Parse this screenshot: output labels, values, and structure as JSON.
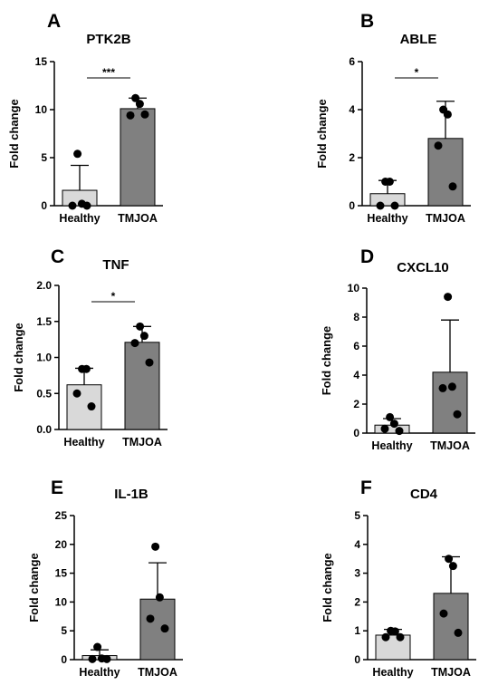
{
  "chart_data": [
    {
      "type": "bar",
      "panel": "A",
      "title": "PTK2B",
      "ylabel": "Fold change",
      "categories": [
        "Healthy",
        "TMJOA"
      ],
      "yticks": [
        "0",
        "5",
        "10",
        "15"
      ],
      "ylim": [
        0,
        15
      ],
      "colors": [
        "#d9d9d9",
        "#808080"
      ],
      "values": [
        1.6,
        10.1
      ],
      "errors": [
        2.6,
        1.1
      ],
      "points": [
        [
          5.4,
          0.2,
          0.0,
          0.0
        ],
        [
          11.2,
          10.6,
          9.4,
          9.5
        ]
      ],
      "significance": "***"
    },
    {
      "type": "bar",
      "panel": "B",
      "title": "ABLE",
      "ylabel": "Fold change",
      "categories": [
        "Healthy",
        "TMJOA"
      ],
      "yticks": [
        "0",
        "2",
        "4",
        "6"
      ],
      "ylim": [
        0,
        6
      ],
      "colors": [
        "#d9d9d9",
        "#808080"
      ],
      "values": [
        0.5,
        2.8
      ],
      "errors": [
        0.55,
        1.55
      ],
      "points": [
        [
          1.0,
          1.0,
          0.0,
          0.0
        ],
        [
          4.0,
          3.8,
          2.5,
          0.8
        ]
      ],
      "significance": "*"
    },
    {
      "type": "bar",
      "panel": "C",
      "title": "TNF",
      "ylabel": "Fold change",
      "categories": [
        "Healthy",
        "TMJOA"
      ],
      "yticks": [
        "0.0",
        "0.5",
        "1.0",
        "1.5",
        "2.0"
      ],
      "ylim": [
        0,
        2
      ],
      "colors": [
        "#d9d9d9",
        "#808080"
      ],
      "values": [
        0.62,
        1.21
      ],
      "errors": [
        0.23,
        0.22
      ],
      "points": [
        [
          0.84,
          0.84,
          0.5,
          0.32
        ],
        [
          1.43,
          1.3,
          1.2,
          0.93
        ]
      ],
      "significance": "*"
    },
    {
      "type": "bar",
      "panel": "D",
      "title": "CXCL10",
      "ylabel": "Fold change",
      "categories": [
        "Healthy",
        "TMJOA"
      ],
      "yticks": [
        "0",
        "2",
        "4",
        "6",
        "8",
        "10"
      ],
      "ylim": [
        0,
        10
      ],
      "colors": [
        "#d9d9d9",
        "#808080"
      ],
      "values": [
        0.55,
        4.2
      ],
      "errors": [
        0.45,
        3.6
      ],
      "points": [
        [
          1.1,
          0.65,
          0.3,
          0.15
        ],
        [
          9.4,
          3.2,
          3.1,
          1.3
        ]
      ],
      "significance": ""
    },
    {
      "type": "bar",
      "panel": "E",
      "title": "IL-1B",
      "ylabel": "Fold change",
      "categories": [
        "Healthy",
        "TMJOA"
      ],
      "yticks": [
        "0",
        "5",
        "10",
        "15",
        "20",
        "25"
      ],
      "ylim": [
        0,
        25
      ],
      "colors": [
        "#d9d9d9",
        "#808080"
      ],
      "values": [
        0.7,
        10.5
      ],
      "errors": [
        1.0,
        6.3
      ],
      "points": [
        [
          2.2,
          0.2,
          0.1,
          0.1
        ],
        [
          19.6,
          10.8,
          7.1,
          5.4
        ]
      ],
      "significance": ""
    },
    {
      "type": "bar",
      "panel": "F",
      "title": "CD4",
      "ylabel": "Fold change",
      "categories": [
        "Healthy",
        "TMJOA"
      ],
      "yticks": [
        "0",
        "1",
        "2",
        "3",
        "4",
        "5"
      ],
      "ylim": [
        0,
        5
      ],
      "colors": [
        "#d9d9d9",
        "#808080"
      ],
      "values": [
        0.85,
        2.3
      ],
      "errors": [
        0.2,
        1.27
      ],
      "points": [
        [
          1.0,
          0.98,
          0.78,
          0.78
        ],
        [
          3.5,
          3.25,
          1.6,
          0.93
        ]
      ],
      "significance": ""
    }
  ]
}
